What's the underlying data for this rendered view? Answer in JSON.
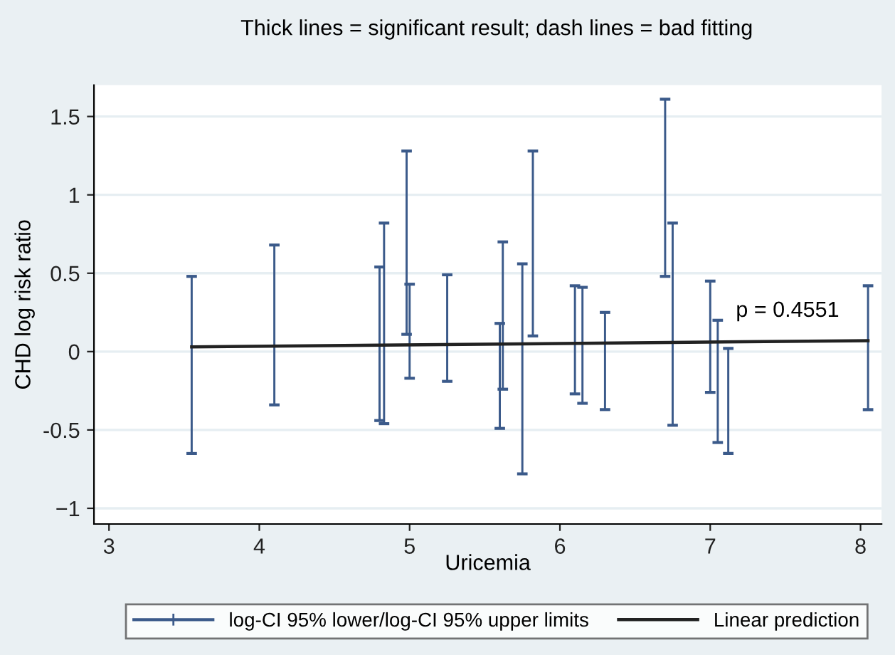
{
  "chart_data": {
    "type": "bar",
    "title": "Thick lines = significant result; dash lines = bad fitting",
    "xlabel": "Uricemia",
    "ylabel": "CHD log risk ratio",
    "series": [
      {
        "name": "log-CI 95% lower/log-CI 95% upper limits",
        "color": "#3b5a8a",
        "x": [
          3.55,
          4.1,
          4.8,
          4.83,
          4.98,
          5.0,
          5.25,
          5.6,
          5.62,
          5.75,
          5.82,
          6.1,
          6.15,
          6.3,
          6.7,
          6.75,
          7.0,
          7.05,
          7.12,
          8.05
        ],
        "base": [
          -0.65,
          -0.34,
          -0.44,
          -0.46,
          0.11,
          -0.17,
          -0.19,
          -0.49,
          -0.24,
          -0.78,
          0.1,
          -0.27,
          -0.33,
          -0.37,
          0.48,
          -0.47,
          -0.26,
          -0.58,
          -0.65,
          -0.37
        ],
        "values": [
          1.13,
          1.02,
          0.98,
          1.28,
          1.17,
          0.6,
          0.68,
          0.67,
          0.94,
          1.34,
          1.18,
          0.69,
          0.74,
          0.62,
          1.13,
          1.29,
          0.71,
          0.78,
          0.67,
          0.79
        ]
      },
      {
        "type": "line",
        "name": "Linear prediction",
        "color": "#222222",
        "x": [
          3.55,
          8.05
        ],
        "values": [
          0.03,
          0.07
        ]
      }
    ],
    "annotations": [
      "p = 0.4551"
    ],
    "xlim": [
      2.9,
      8.14
    ],
    "xticks": [
      3,
      4,
      5,
      6,
      7,
      8
    ],
    "ylim": [
      -1.1,
      1.7
    ],
    "yticks": [
      {
        "value": -1,
        "label": "−1"
      },
      -0.5,
      0,
      0.5,
      1,
      1.5
    ],
    "grid": "y",
    "legend": "bottom"
  }
}
